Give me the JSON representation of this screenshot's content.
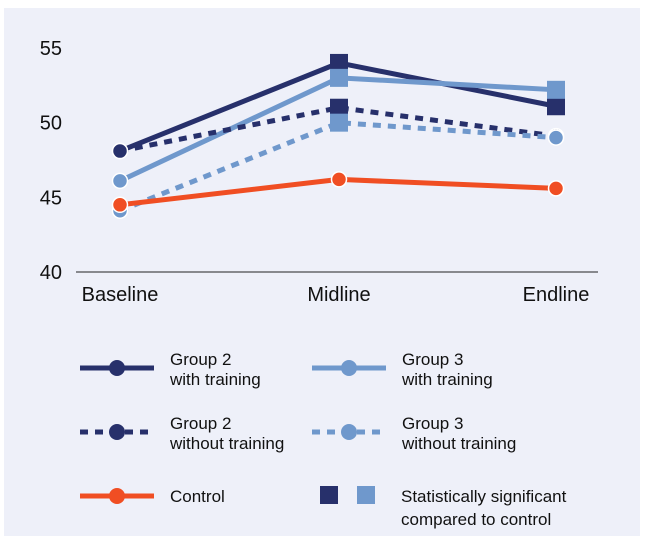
{
  "chart_data": {
    "type": "line",
    "categories": [
      "Baseline",
      "Midline",
      "Endline"
    ],
    "ylim": [
      40,
      56
    ],
    "yticks": [
      40,
      45,
      50,
      55
    ],
    "grid": false,
    "legend_position": "bottom",
    "series": [
      {
        "name": "Group 2 with training",
        "name_lines": [
          "Group 2",
          "with training"
        ],
        "values": [
          48.1,
          54.0,
          51.1
        ],
        "color": "#27306b",
        "dashed": false,
        "significant": [
          false,
          true,
          true
        ]
      },
      {
        "name": "Group 3 with training",
        "name_lines": [
          "Group 3",
          "with training"
        ],
        "values": [
          46.1,
          53.0,
          52.2
        ],
        "color": "#6f98cc",
        "dashed": false,
        "significant": [
          false,
          true,
          true
        ]
      },
      {
        "name": "Group 2 without training",
        "name_lines": [
          "Group 2",
          "without training"
        ],
        "values": [
          48.1,
          51.0,
          49.1
        ],
        "color": "#27306b",
        "dashed": true,
        "significant": [
          false,
          true,
          false
        ]
      },
      {
        "name": "Group 3 without training",
        "name_lines": [
          "Group 3",
          "without training"
        ],
        "values": [
          44.1,
          50.0,
          49.0
        ],
        "color": "#6f98cc",
        "dashed": true,
        "significant": [
          false,
          true,
          false
        ]
      },
      {
        "name": "Control",
        "name_lines": [
          "Control"
        ],
        "values": [
          44.5,
          46.2,
          45.6
        ],
        "color": "#f04e23",
        "dashed": false,
        "significant": [
          false,
          false,
          false
        ]
      }
    ],
    "significance_note": [
      "Statistically significant",
      "compared to control"
    ]
  }
}
